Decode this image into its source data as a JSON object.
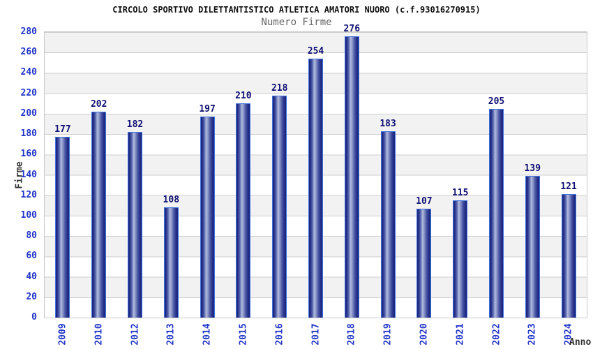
{
  "header": {
    "title": "CIRCOLO SPORTIVO DILETTANTISTICO ATLETICA AMATORI NUORO (c.f.93016270915)",
    "subtitle": "Numero Firme"
  },
  "chart_data": {
    "type": "bar",
    "title": "Numero Firme",
    "xlabel": "Anno",
    "ylabel": "Firme",
    "categories": [
      "2009",
      "2010",
      "2012",
      "2013",
      "2014",
      "2015",
      "2016",
      "2017",
      "2018",
      "2019",
      "2020",
      "2021",
      "2022",
      "2023",
      "2024"
    ],
    "values": [
      177,
      202,
      182,
      108,
      197,
      210,
      218,
      254,
      276,
      183,
      107,
      115,
      205,
      139,
      121
    ],
    "ylim": [
      0,
      280
    ],
    "yticks": [
      0,
      20,
      40,
      60,
      80,
      100,
      120,
      140,
      160,
      180,
      200,
      220,
      240,
      260,
      280
    ],
    "grid": "horizontal-lines-every-20-with-alternating-bands",
    "legend": "none",
    "x_tick_rotation_deg": 90,
    "colors": {
      "bar_dark": "#1a257e",
      "bar_light": "#b2bbde",
      "bar_border": "#4473dd",
      "tick_label": "#2236c8",
      "value_label": "#101073",
      "band": "#f2f2f2",
      "grid_line": "#cfcfcf",
      "plot_border": "#c8c8c8",
      "title": "#111111",
      "subtitle": "#666666",
      "axis_title": "#333333"
    }
  }
}
